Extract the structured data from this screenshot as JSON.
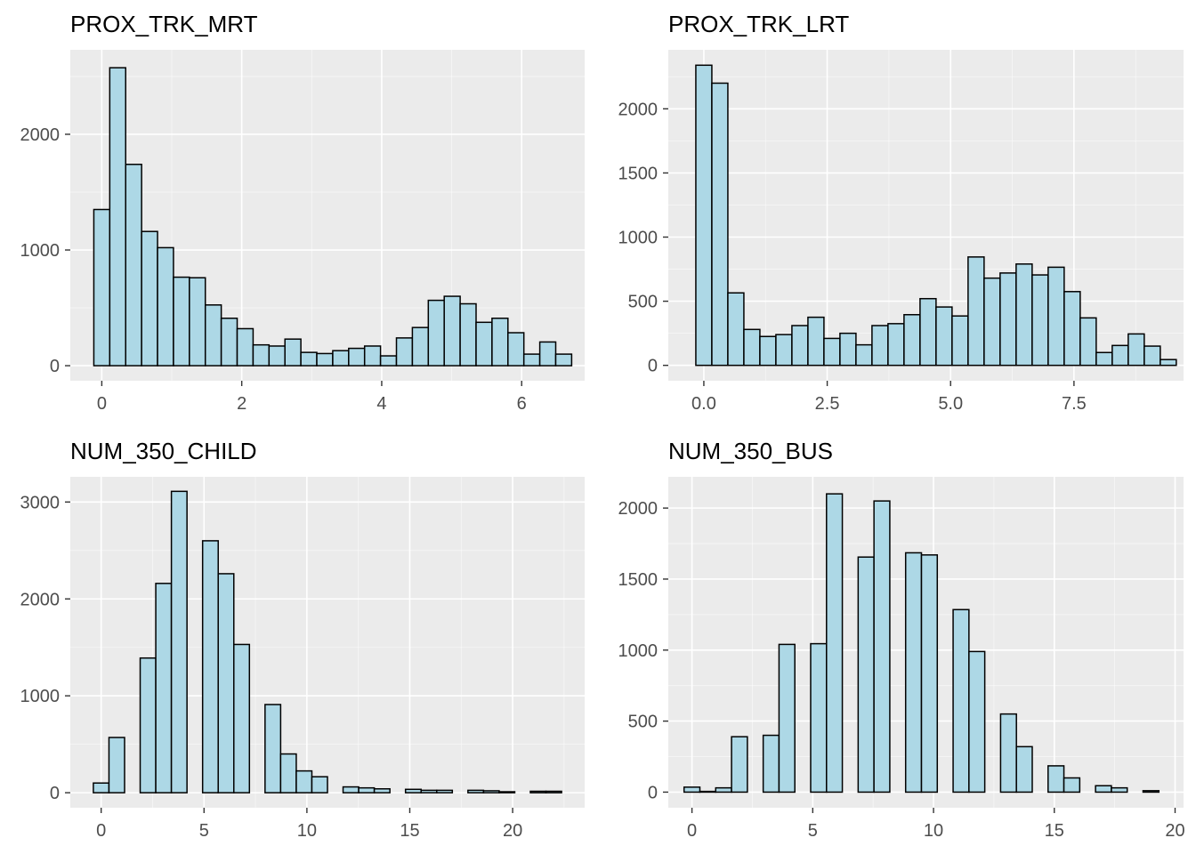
{
  "style": {
    "panel_background": "#ebebeb",
    "grid_major": "#ffffff",
    "bar_fill": "#add8e6",
    "bar_stroke": "#000000",
    "tick_color": "#333333",
    "tick_label_color": "#4d4d4d"
  },
  "chart_data": [
    {
      "type": "bar",
      "subtype": "histogram",
      "title": "PROX_TRK_MRT",
      "xlabel": "",
      "ylabel": "",
      "grid": true,
      "legend": "none",
      "xlim": [
        -0.45,
        6.9
      ],
      "ylim": [
        -130,
        2730
      ],
      "x_ticks": [
        0,
        2,
        4,
        6
      ],
      "x_tick_labels": [
        "0",
        "2",
        "4",
        "6"
      ],
      "y_ticks": [
        0,
        1000,
        2000
      ],
      "y_tick_labels": [
        "0",
        "1000",
        "2000"
      ],
      "bin_width": 0.2276,
      "bin_start": -0.1138,
      "values": [
        1350,
        2575,
        1740,
        1160,
        1020,
        765,
        760,
        525,
        410,
        320,
        180,
        170,
        230,
        115,
        105,
        130,
        150,
        170,
        85,
        240,
        330,
        565,
        600,
        535,
        375,
        410,
        285,
        100,
        205,
        100
      ]
    },
    {
      "type": "bar",
      "subtype": "histogram",
      "title": "PROX_TRK_LRT",
      "xlabel": "",
      "ylabel": "",
      "grid": true,
      "legend": "none",
      "xlim": [
        -0.72,
        9.72
      ],
      "ylim": [
        -120,
        2460
      ],
      "x_ticks": [
        0,
        2.5,
        5,
        7.5
      ],
      "x_tick_labels": [
        "0.0",
        "2.5",
        "5.0",
        "7.5"
      ],
      "y_ticks": [
        0,
        500,
        1000,
        1500,
        2000
      ],
      "y_tick_labels": [
        "0",
        "500",
        "1000",
        "1500",
        "2000"
      ],
      "bin_width": 0.3245,
      "bin_start": -0.1622,
      "values": [
        2340,
        2200,
        565,
        280,
        225,
        240,
        310,
        375,
        210,
        250,
        160,
        310,
        325,
        395,
        520,
        455,
        385,
        845,
        680,
        720,
        790,
        705,
        765,
        575,
        370,
        100,
        155,
        245,
        150,
        45
      ]
    },
    {
      "type": "bar",
      "subtype": "histogram",
      "title": "NUM_350_CHILD",
      "xlabel": "",
      "ylabel": "",
      "grid": true,
      "legend": "none",
      "xlim": [
        -1.5,
        23.5
      ],
      "ylim": [
        -155,
        3260
      ],
      "x_ticks": [
        0,
        5,
        10,
        15,
        20
      ],
      "x_tick_labels": [
        "0",
        "5",
        "10",
        "15",
        "20"
      ],
      "y_ticks": [
        0,
        1000,
        2000,
        3000
      ],
      "y_tick_labels": [
        "0",
        "1000",
        "2000",
        "3000"
      ],
      "bin_width": 0.7586,
      "bin_start": -0.3793,
      "values": [
        100,
        570,
        0,
        1390,
        2160,
        3110,
        0,
        2600,
        2260,
        1530,
        0,
        910,
        400,
        225,
        165,
        0,
        60,
        50,
        40,
        0,
        35,
        25,
        25,
        0,
        25,
        20,
        10,
        0,
        15,
        15
      ]
    },
    {
      "type": "bar",
      "subtype": "histogram",
      "title": "NUM_350_BUS",
      "xlabel": "",
      "ylabel": "",
      "grid": true,
      "legend": "none",
      "xlim": [
        -0.98,
        20.35
      ],
      "ylim": [
        -110,
        2220
      ],
      "x_ticks": [
        0,
        5,
        10,
        15,
        20
      ],
      "x_tick_labels": [
        "0",
        "5",
        "10",
        "15",
        "20"
      ],
      "y_ticks": [
        0,
        500,
        1000,
        1500,
        2000
      ],
      "y_tick_labels": [
        "0",
        "500",
        "1000",
        "1500",
        "2000"
      ],
      "bin_width": 0.6552,
      "bin_start": -0.3276,
      "values": [
        35,
        5,
        30,
        390,
        0,
        400,
        1040,
        0,
        1045,
        2100,
        0,
        1655,
        2050,
        0,
        1685,
        1670,
        0,
        1285,
        990,
        0,
        550,
        320,
        0,
        185,
        100,
        0,
        45,
        30,
        0,
        10
      ]
    }
  ]
}
